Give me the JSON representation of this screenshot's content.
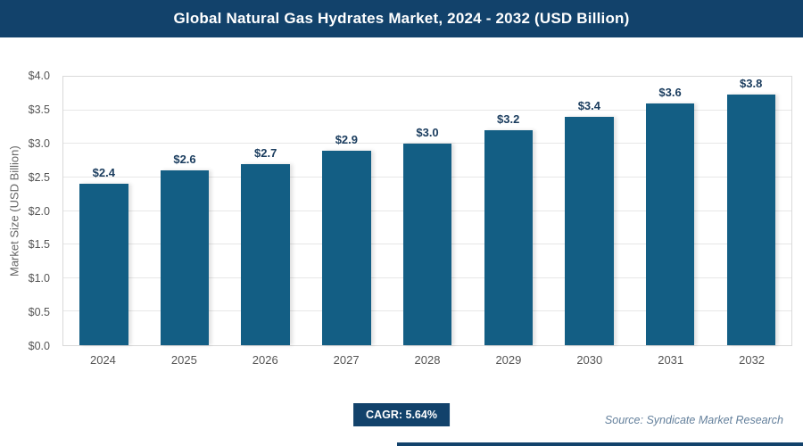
{
  "header": {
    "title": "Global Natural Gas Hydrates Market, 2024 - 2032 (USD Billion)"
  },
  "colors": {
    "header_bg": "#12426b",
    "bar": "#135e84",
    "badge_bg": "#12426b",
    "accent_bar": "#12426b"
  },
  "chart_data": {
    "type": "bar",
    "title": "Global Natural Gas Hydrates Market, 2024 - 2032 (USD Billion)",
    "categories": [
      "2024",
      "2025",
      "2026",
      "2027",
      "2028",
      "2029",
      "2030",
      "2031",
      "2032"
    ],
    "values": [
      2.4,
      2.6,
      2.7,
      2.9,
      3.0,
      3.2,
      3.4,
      3.6,
      3.8
    ],
    "labels": [
      "$2.4",
      "$2.6",
      "$2.7",
      "$2.9",
      "$3.0",
      "$3.2",
      "$3.4",
      "$3.6",
      "$3.8"
    ],
    "xlabel": "",
    "ylabel": "Market Size (USD Billion)",
    "ylim": [
      0,
      4.0
    ],
    "ytick_step": 0.5,
    "yticks": [
      "$0.0",
      "$0.5",
      "$1.0",
      "$1.5",
      "$2.0",
      "$2.5",
      "$3.0",
      "$3.5",
      "$4.0"
    ],
    "grid": true,
    "legend": false,
    "bar_color": "#135e84"
  },
  "footer": {
    "cagr_label": "CAGR: 5.64%",
    "source": "Source: Syndicate Market Research"
  }
}
